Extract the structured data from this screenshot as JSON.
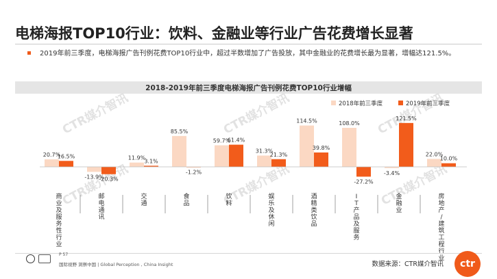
{
  "page": {
    "title": "电梯海报TOP10行业：饮料、金融业等行业广告花费增长显著",
    "summary": "2019年前三季度，电梯海报广告刊例花费TOP10行业中，超过半数增加了广告投放，其中金融业的花费增长最为显著，增幅达121.5%。",
    "page_number": "P 57",
    "footer_text": "国际视野  洞察中国 | Global Perception , China Insight",
    "source": "数据来源：CTR媒介智讯",
    "logo_text": "ctr",
    "watermark_text": "CTR媒介智讯"
  },
  "colors": {
    "series_2018": "#fbd8c3",
    "series_2019": "#f25c1b",
    "accent": "#f05a1a"
  },
  "chart_data": {
    "type": "bar",
    "title": "2018-2019年前三季度电梯海报广告刊例花费TOP10行业增幅",
    "legend_position": "top-right",
    "categories": [
      "商业及服务性行业",
      "邮电通讯",
      "交通",
      "食品",
      "饮料",
      "娱乐及休闲",
      "酒精类饮品",
      "IT产品及服务",
      "金融业",
      "房地产/建筑工程行业"
    ],
    "series": [
      {
        "name": "2018年前三季度",
        "values": [
          20.7,
          -13.9,
          11.9,
          85.5,
          59.7,
          31.3,
          114.5,
          108.0,
          -3.4,
          22.0
        ],
        "labels": [
          "20.7%",
          "-13.9%",
          "11.9%",
          "85.5%",
          "59.7%",
          "31.3%",
          "114.5%",
          "108.0%",
          "-3.4%",
          "22.0%"
        ]
      },
      {
        "name": "2019年前三季度",
        "values": [
          16.5,
          -20.3,
          3.1,
          -1.2,
          61.4,
          21.3,
          39.8,
          -27.2,
          121.5,
          10.0
        ],
        "labels": [
          "16.5%",
          "-20.3%",
          "3.1%",
          "-1.2%",
          "61.4%",
          "21.3%",
          "39.8%",
          "-27.2%",
          "121.5%",
          "10.0%"
        ]
      }
    ],
    "ylabel": "",
    "xlabel": "",
    "grid": false
  }
}
